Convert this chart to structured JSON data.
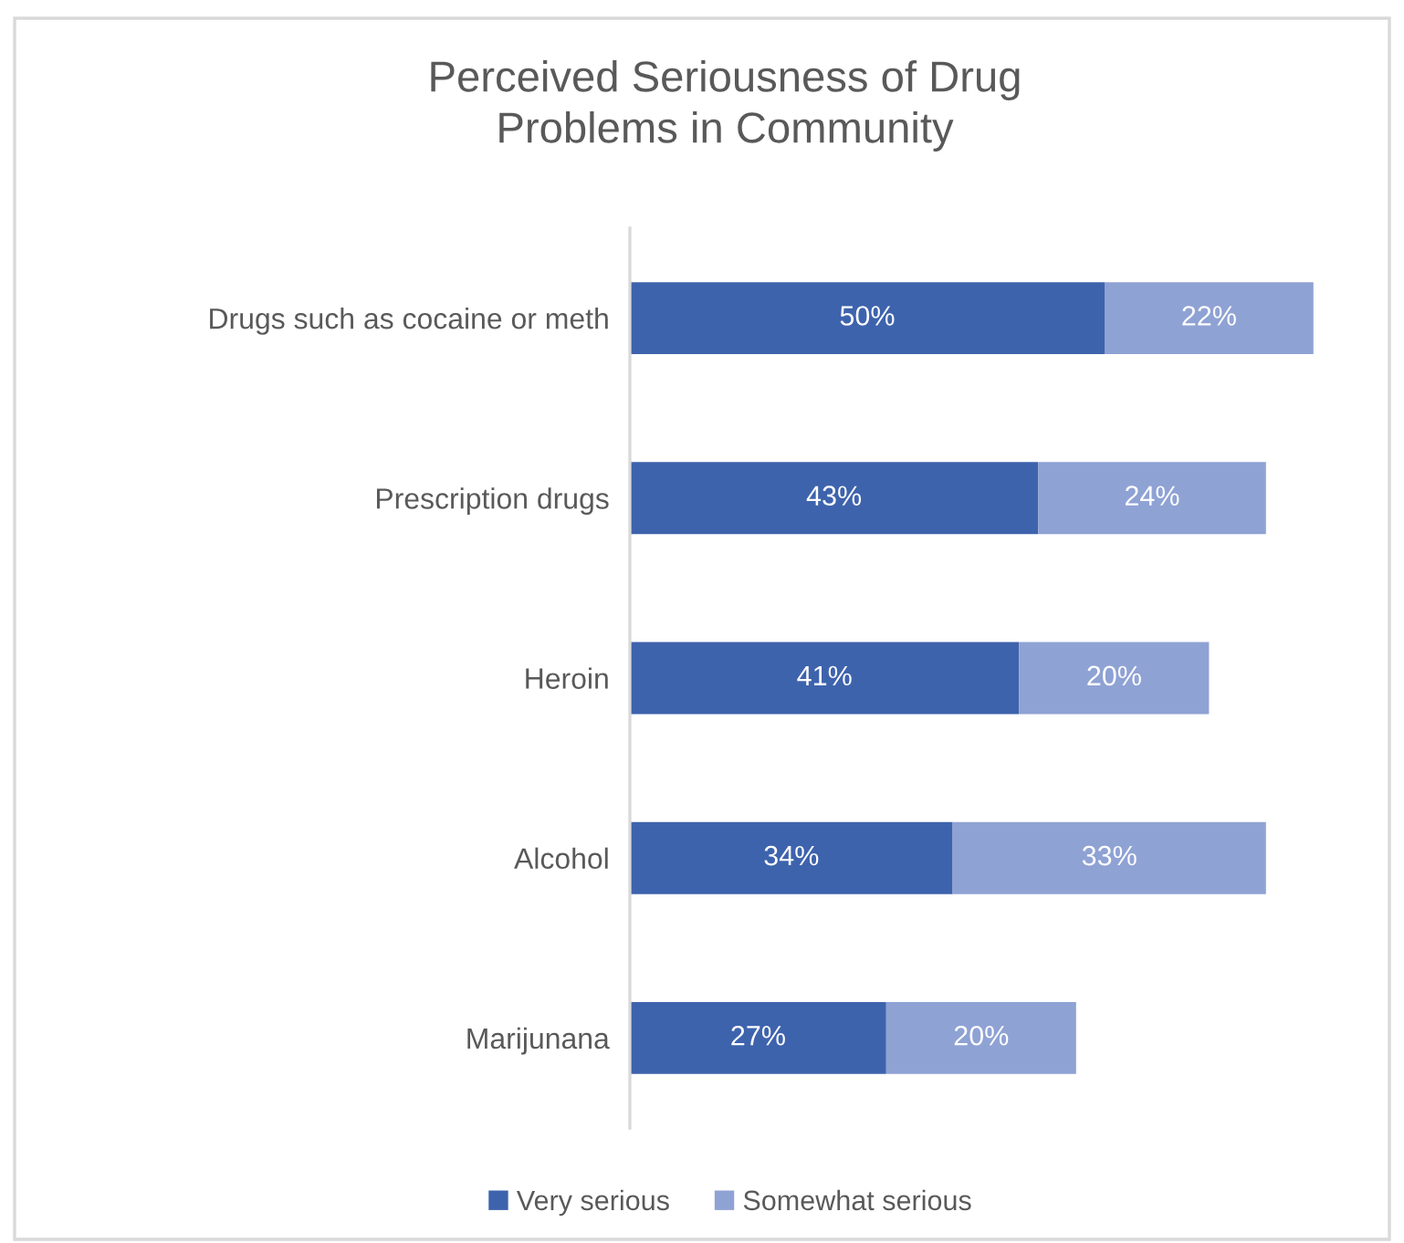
{
  "chart_data": {
    "type": "bar",
    "orientation": "horizontal",
    "stacked": true,
    "title": "Perceived Seriousness of Drug\nProblems in Community",
    "categories": [
      "Drugs such as cocaine or meth",
      "Prescription drugs",
      "Heroin",
      "Alcohol",
      "Marijunana"
    ],
    "series": [
      {
        "name": "Very serious",
        "color": "#3e63ad",
        "values": [
          50,
          43,
          41,
          34,
          27
        ],
        "value_labels": [
          "50%",
          "43%",
          "41%",
          "34%",
          "27%"
        ]
      },
      {
        "name": "Somewhat serious",
        "color": "#8fa2d4",
        "values": [
          22,
          24,
          20,
          33,
          20
        ],
        "value_labels": [
          "22%",
          "24%",
          "20%",
          "33%",
          "20%"
        ]
      }
    ],
    "xlim": [
      0,
      80
    ],
    "tick_labels": "y",
    "grid": false,
    "legend": "bottom"
  }
}
